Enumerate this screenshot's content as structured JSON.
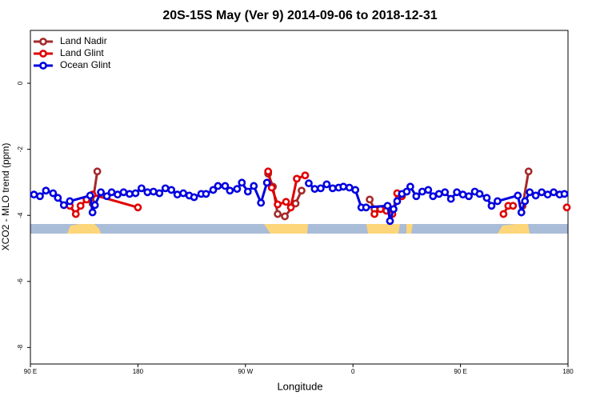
{
  "chart_data": {
    "type": "line",
    "title": "20S-15S May (Ver 9)   2014-09-06 to 2018-12-31",
    "x_label": "Longitude",
    "y_label": "XCO2 - MLO trend (ppm)",
    "xlim": [
      90,
      540
    ],
    "xticks": [
      {
        "value": 90,
        "label": "90 E"
      },
      {
        "value": 180,
        "label": "180"
      },
      {
        "value": 270,
        "label": "90 W"
      },
      {
        "value": 360,
        "label": "0"
      },
      {
        "value": 450,
        "label": "90 E"
      },
      {
        "value": 540,
        "label": "180"
      }
    ],
    "ylim": [
      -8.5,
      1.6
    ],
    "yticks": [
      0,
      -2,
      -4,
      -6,
      -8
    ],
    "legend": "top-left",
    "series": [
      {
        "name": "Land Nadir",
        "color": "#a52a2a",
        "x": [
          142,
          146,
          null,
          289,
          293,
          297,
          303,
          312,
          317,
          null,
          374,
          378,
          null,
          502,
          507
        ],
        "values": [
          -3.64,
          -2.67,
          null,
          -2.74,
          -3.13,
          -3.96,
          -4.03,
          -3.64,
          -3.25,
          null,
          -3.52,
          -3.81,
          null,
          -3.71,
          -2.67
        ]
      },
      {
        "name": "Land Glint",
        "color": "#e00000",
        "x": [
          123,
          128,
          132,
          137,
          142,
          180,
          null,
          289,
          292,
          297,
          304,
          308,
          313,
          320,
          null,
          378,
          383,
          388,
          393,
          397,
          401,
          null,
          486,
          490,
          494,
          null,
          539
        ],
        "values": [
          -3.71,
          -3.96,
          -3.71,
          -3.52,
          -3.37,
          -3.76,
          null,
          -2.67,
          -3.16,
          -3.67,
          -3.59,
          -3.76,
          -2.89,
          -2.79,
          null,
          -3.96,
          -3.81,
          -3.86,
          -3.96,
          -3.33,
          -3.42,
          null,
          -3.96,
          -3.71,
          -3.71,
          null,
          -3.76
        ]
      },
      {
        "name": "Ocean Glint",
        "color": "#0000e0",
        "x": [
          93,
          98,
          103,
          109,
          113,
          118,
          123,
          140,
          142,
          144,
          149,
          154,
          158,
          163,
          168,
          173,
          178,
          183,
          188,
          193,
          198,
          203,
          208,
          213,
          218,
          223,
          227,
          233,
          237,
          243,
          247,
          253,
          257,
          263,
          267,
          272,
          277,
          283,
          288,
          null,
          323,
          328,
          333,
          338,
          343,
          348,
          352,
          357,
          362,
          367,
          371,
          389,
          391,
          394,
          397,
          401,
          405,
          408,
          413,
          418,
          423,
          427,
          432,
          437,
          442,
          447,
          452,
          457,
          462,
          466,
          472,
          476,
          481,
          498,
          501,
          504,
          508,
          513,
          518,
          523,
          528,
          533,
          537
        ],
        "values": [
          -3.37,
          -3.42,
          -3.25,
          -3.33,
          -3.47,
          -3.69,
          -3.57,
          -3.4,
          -3.91,
          -3.69,
          -3.3,
          -3.42,
          -3.3,
          -3.37,
          -3.3,
          -3.35,
          -3.33,
          -3.18,
          -3.3,
          -3.28,
          -3.33,
          -3.18,
          -3.23,
          -3.37,
          -3.33,
          -3.4,
          -3.45,
          -3.35,
          -3.35,
          -3.23,
          -3.11,
          -3.11,
          -3.25,
          -3.2,
          -3.01,
          -3.28,
          -3.11,
          -3.62,
          -3.01,
          null,
          -3.03,
          -3.2,
          -3.18,
          -3.06,
          -3.18,
          -3.16,
          -3.13,
          -3.16,
          -3.23,
          -3.76,
          -3.76,
          -3.71,
          -4.17,
          -3.81,
          -3.57,
          -3.35,
          -3.28,
          -3.13,
          -3.42,
          -3.28,
          -3.23,
          -3.42,
          -3.35,
          -3.3,
          -3.5,
          -3.3,
          -3.37,
          -3.42,
          -3.28,
          -3.35,
          -3.47,
          -3.71,
          -3.57,
          -3.4,
          -3.91,
          -3.57,
          -3.3,
          -3.4,
          -3.3,
          -3.37,
          -3.3,
          -3.37,
          -3.35
        ]
      }
    ]
  }
}
